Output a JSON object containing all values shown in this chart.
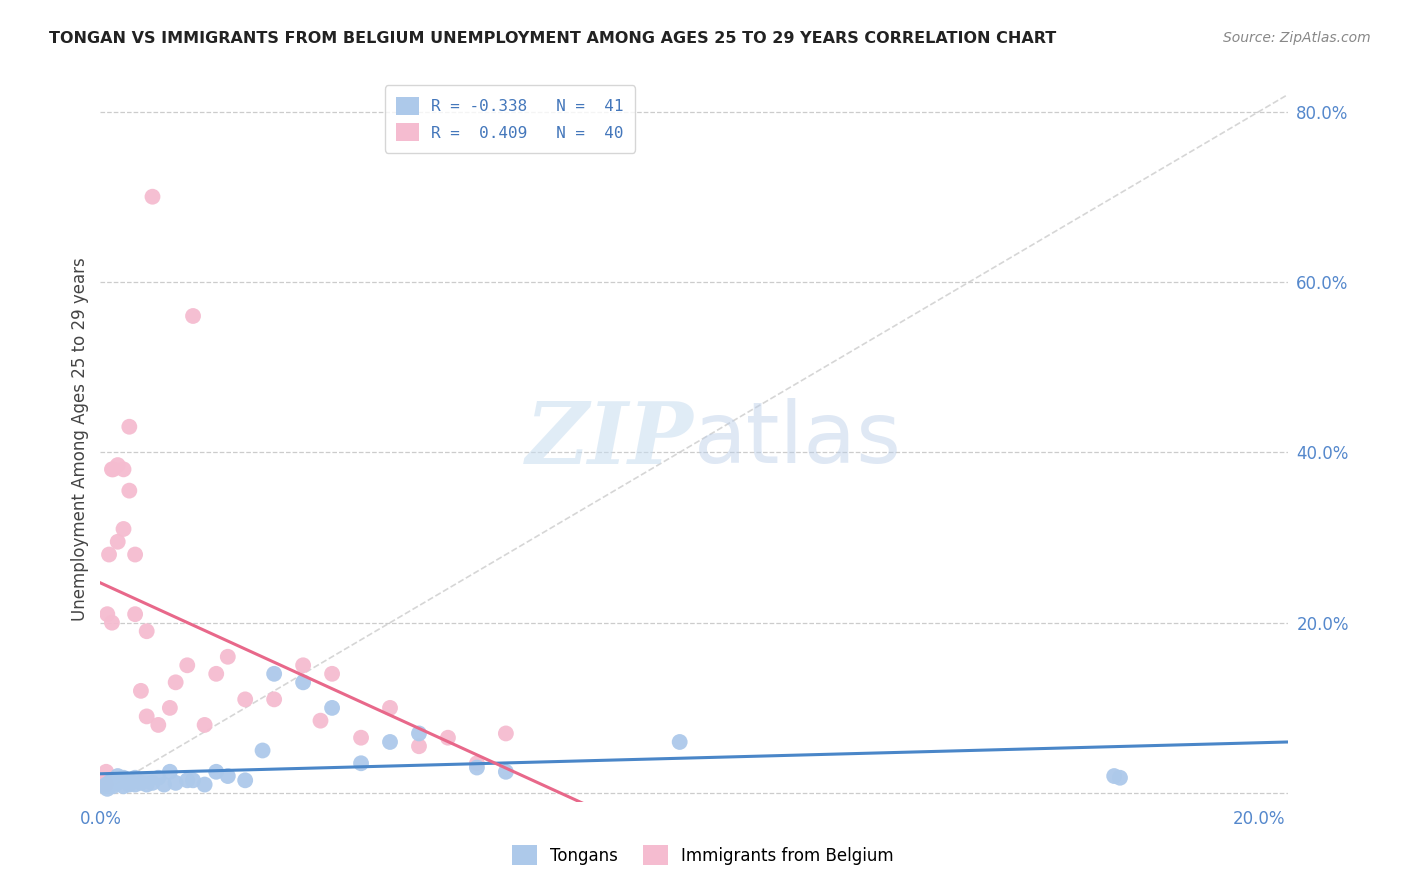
{
  "title": "TONGAN VS IMMIGRANTS FROM BELGIUM UNEMPLOYMENT AMONG AGES 25 TO 29 YEARS CORRELATION CHART",
  "source": "Source: ZipAtlas.com",
  "ylabel": "Unemployment Among Ages 25 to 29 years",
  "xlim": [
    0.0,
    0.205
  ],
  "ylim": [
    -0.01,
    0.84
  ],
  "x_ticks": [
    0.0,
    0.2
  ],
  "y_ticks_right": [
    0.0,
    0.2,
    0.4,
    0.6,
    0.8
  ],
  "legend_label_1": "R = -0.338   N =  41",
  "legend_label_2": "R =  0.409   N =  40",
  "tongans_color": "#adc9ea",
  "belgium_color": "#f5bcd0",
  "tongans_line_color": "#4a86c8",
  "belgium_line_color": "#e8688a",
  "diag_line_color": "#cccccc",
  "watermark_zip": "ZIP",
  "watermark_atlas": "atlas",
  "tongans_x": [
    0.0008,
    0.001,
    0.0012,
    0.0015,
    0.002,
    0.002,
    0.0022,
    0.003,
    0.003,
    0.004,
    0.004,
    0.005,
    0.005,
    0.006,
    0.006,
    0.007,
    0.008,
    0.008,
    0.009,
    0.01,
    0.011,
    0.012,
    0.013,
    0.015,
    0.016,
    0.018,
    0.02,
    0.022,
    0.025,
    0.028,
    0.03,
    0.035,
    0.04,
    0.045,
    0.05,
    0.055,
    0.065,
    0.07,
    0.1,
    0.175,
    0.176
  ],
  "tongans_y": [
    0.008,
    0.01,
    0.005,
    0.012,
    0.01,
    0.015,
    0.008,
    0.012,
    0.02,
    0.008,
    0.018,
    0.01,
    0.015,
    0.01,
    0.018,
    0.012,
    0.015,
    0.01,
    0.012,
    0.018,
    0.01,
    0.025,
    0.012,
    0.015,
    0.015,
    0.01,
    0.025,
    0.02,
    0.015,
    0.05,
    0.14,
    0.13,
    0.1,
    0.035,
    0.06,
    0.07,
    0.03,
    0.025,
    0.06,
    0.02,
    0.018
  ],
  "belgium_x": [
    0.0005,
    0.0008,
    0.001,
    0.001,
    0.0012,
    0.0015,
    0.002,
    0.002,
    0.0022,
    0.003,
    0.003,
    0.004,
    0.004,
    0.005,
    0.005,
    0.006,
    0.006,
    0.007,
    0.008,
    0.008,
    0.009,
    0.01,
    0.012,
    0.013,
    0.015,
    0.016,
    0.018,
    0.02,
    0.022,
    0.025,
    0.03,
    0.035,
    0.038,
    0.04,
    0.045,
    0.05,
    0.055,
    0.06,
    0.065,
    0.07
  ],
  "belgium_y": [
    0.01,
    0.012,
    0.025,
    0.01,
    0.21,
    0.28,
    0.2,
    0.38,
    0.38,
    0.385,
    0.295,
    0.31,
    0.38,
    0.43,
    0.355,
    0.28,
    0.21,
    0.12,
    0.09,
    0.19,
    0.7,
    0.08,
    0.1,
    0.13,
    0.15,
    0.56,
    0.08,
    0.14,
    0.16,
    0.11,
    0.11,
    0.15,
    0.085,
    0.14,
    0.065,
    0.1,
    0.055,
    0.065,
    0.035,
    0.07
  ]
}
